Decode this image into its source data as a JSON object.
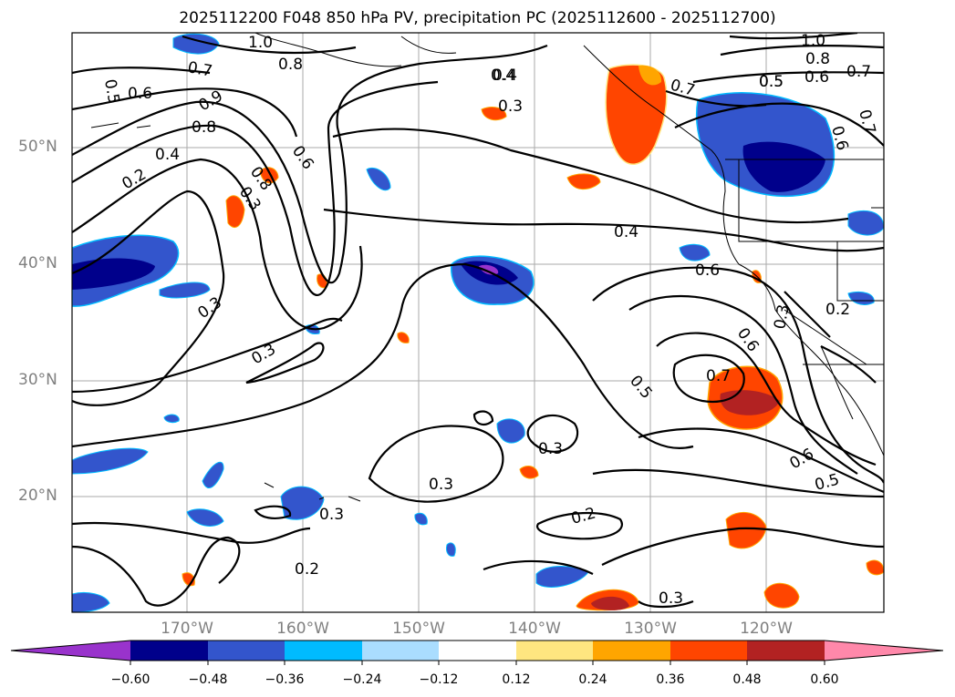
{
  "title": "2025112200 F048 850 hPa PV, precipitation PC (2025112600 - 2025112700)",
  "lat_labels": [
    "50°N",
    "40°N",
    "30°N",
    "20°N"
  ],
  "lon_labels": [
    "170°W",
    "160°W",
    "150°W",
    "140°W",
    "130°W",
    "120°W"
  ],
  "contour_labels": [
    "1.0",
    "0.7",
    "0.8",
    "0.5",
    "0.6",
    "0.9",
    "0.8",
    "0.4",
    "0.2",
    "0.8",
    "0.3",
    "0.6",
    "0.4",
    "0.3",
    "0.4",
    "0.3",
    "0.3",
    "0.3",
    "0.3",
    "0.3",
    "0.2",
    "0.2",
    "0.5",
    "0.6",
    "0.7",
    "0.6",
    "0.3",
    "0.2",
    "0.7",
    "0.5",
    "0.3",
    "0.6",
    "0.5",
    "1.0",
    "0.8",
    "0.7",
    "0.6",
    "0.5",
    "0.4",
    "0.6",
    "0.7"
  ],
  "colorbar": {
    "ticks": [
      "−0.60",
      "−0.48",
      "−0.36",
      "−0.24",
      "−0.12",
      "0.12",
      "0.24",
      "0.36",
      "0.48",
      "0.60"
    ],
    "colors": [
      "#9933cc",
      "#00008b",
      "#3355cc",
      "#00bbff",
      "#aaddff",
      "#ffffff",
      "#ffe680",
      "#ffa500",
      "#ff4500",
      "#b22222",
      "#ff88aa"
    ]
  },
  "colors": {
    "negative_dark": "#00008b",
    "negative_mid": "#3355cc",
    "negative_light": "#00bbff",
    "positive_orange": "#ff4500",
    "positive_red": "#b22222"
  }
}
